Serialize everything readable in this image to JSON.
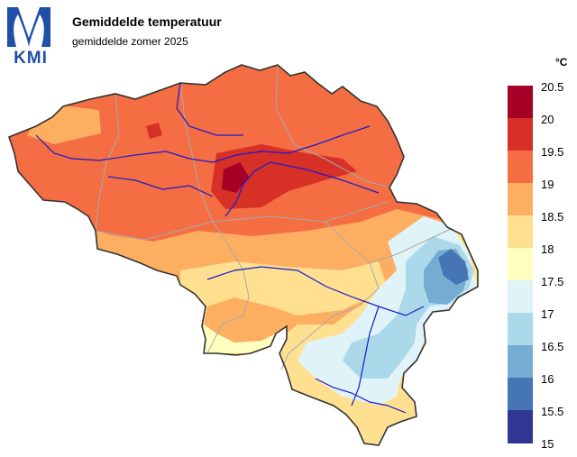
{
  "header": {
    "logo_text": "KMI",
    "title": "Gemiddelde temperatuur",
    "subtitle": "gemiddelde zomer 2025"
  },
  "legend": {
    "unit": "°C",
    "ticks": [
      "20.5",
      "20",
      "19.5",
      "19",
      "18.5",
      "18",
      "17.5",
      "17",
      "16.5",
      "16",
      "15.5",
      "15"
    ],
    "colors": [
      "#a50026",
      "#d73027",
      "#f46d43",
      "#fdae61",
      "#fee090",
      "#ffffbf",
      "#e0f3f8",
      "#abd9e9",
      "#74add1",
      "#4575b4",
      "#313695"
    ]
  },
  "map": {
    "region": "Belgium",
    "colors": {
      "border": "#333333",
      "provinces": "#aaaaaa",
      "rivers": "#1a1acc"
    }
  }
}
